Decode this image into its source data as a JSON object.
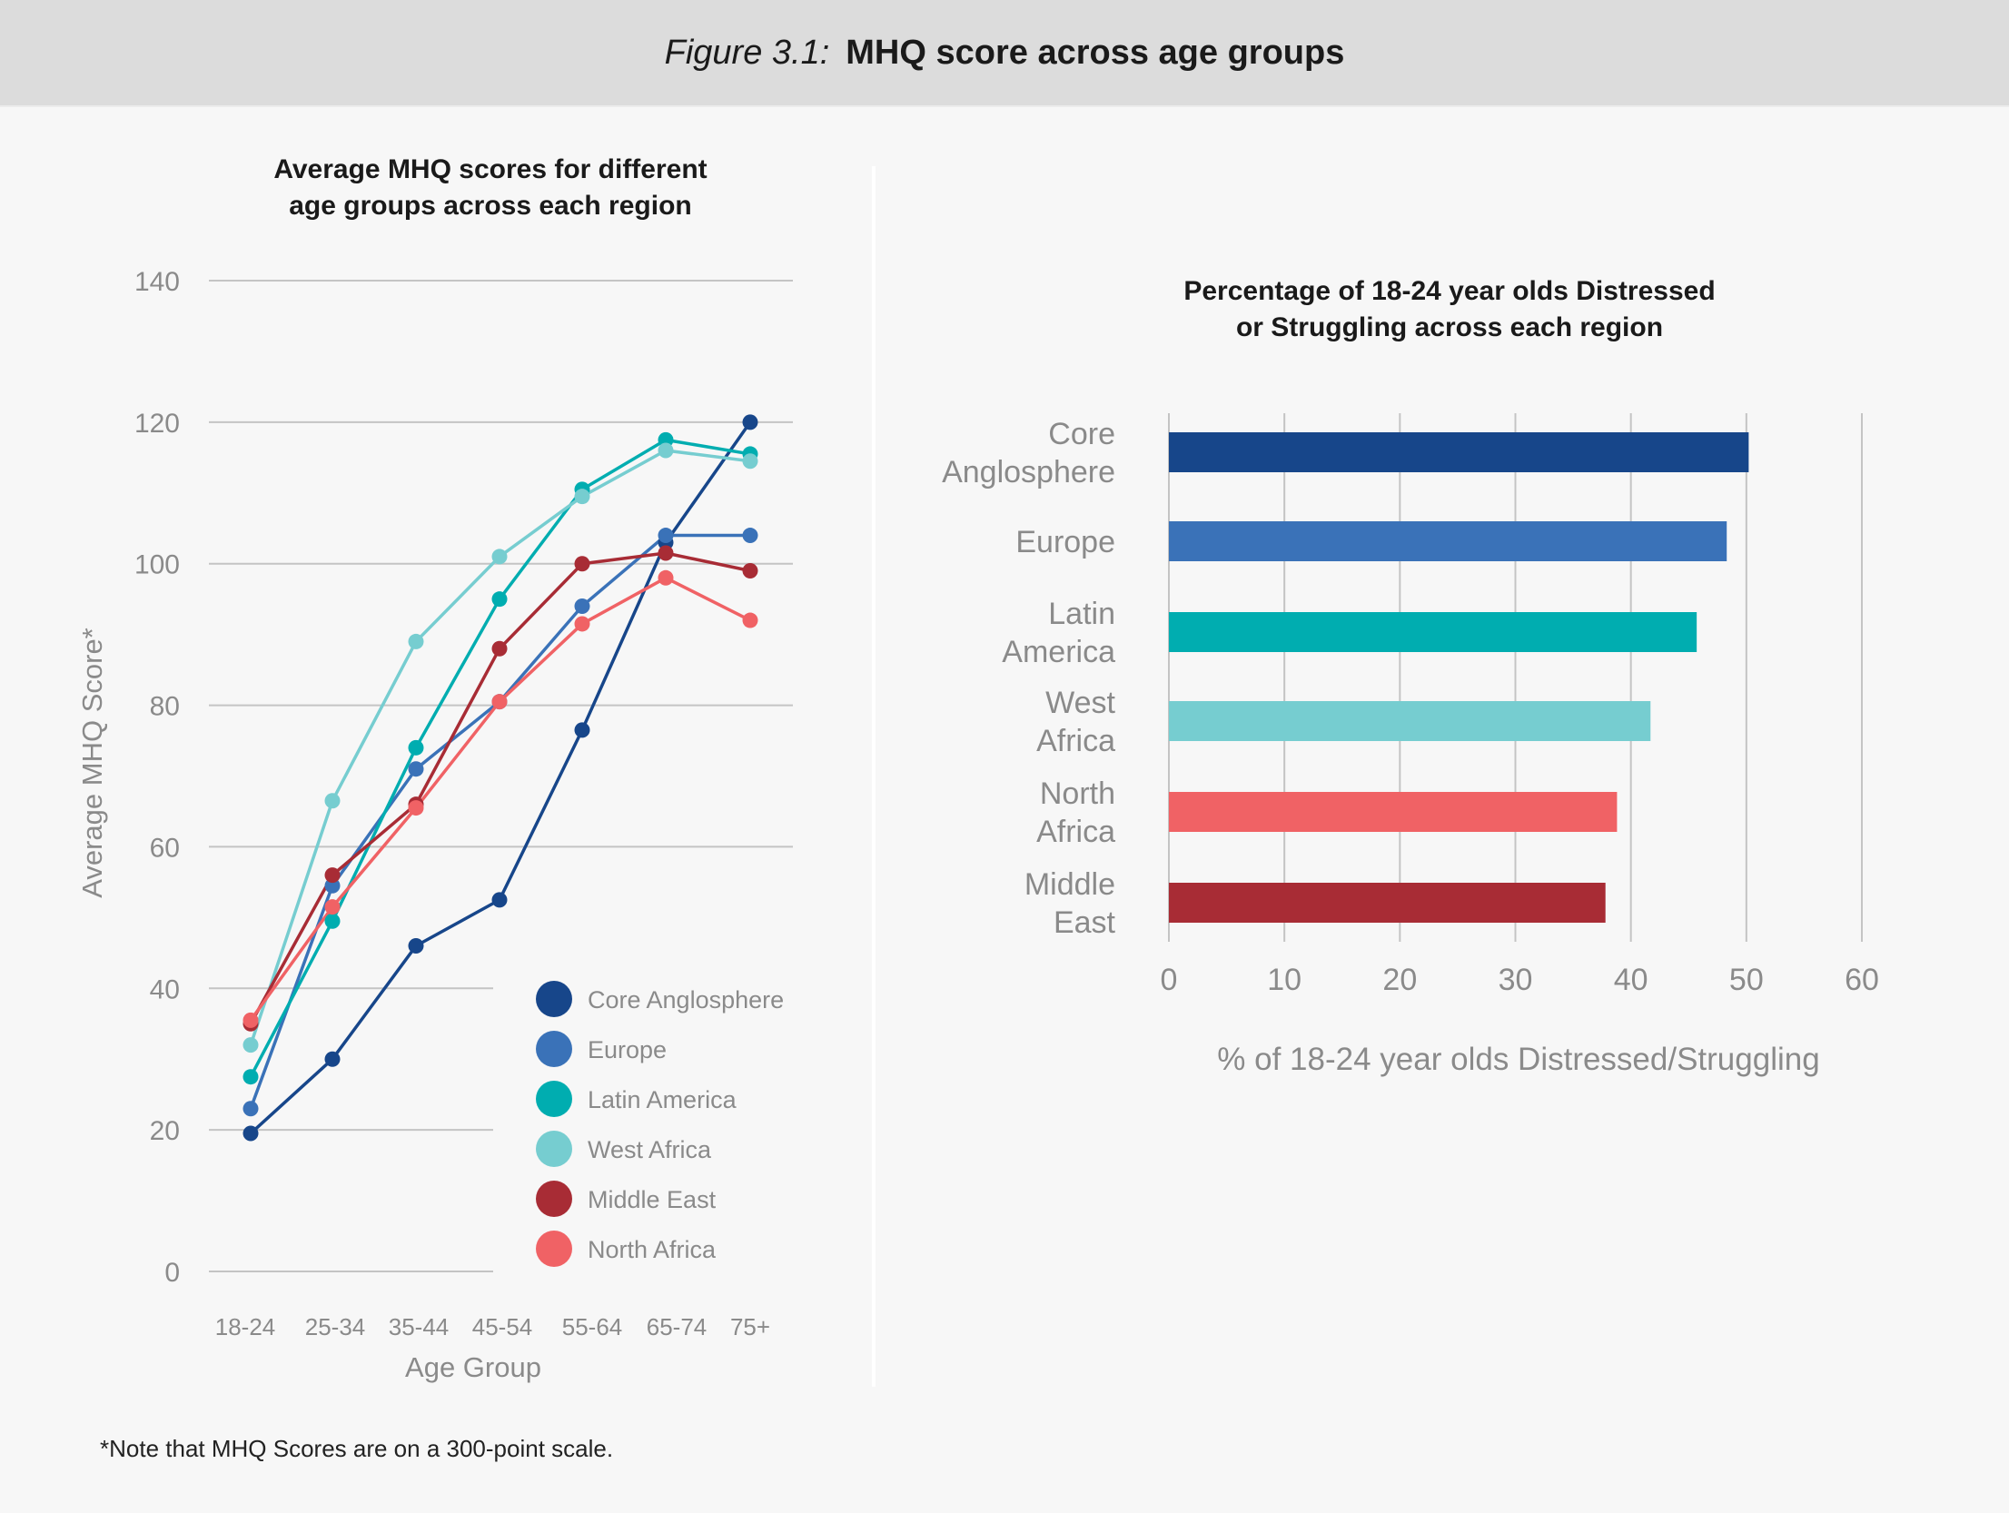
{
  "header": {
    "figure_label": "Figure 3.1:",
    "figure_title": "MHQ score across age groups"
  },
  "footnote": "*Note that MHQ Scores are on a 300-point scale.",
  "colors": {
    "core_anglosphere": "#17468a",
    "europe": "#3a72b8",
    "latin_america": "#00adb0",
    "west_africa": "#76cdd0",
    "middle_east": "#a82c35",
    "north_africa": "#f06265"
  },
  "chart_data": [
    {
      "type": "line",
      "title": [
        "Average MHQ scores for different",
        "age groups across each region"
      ],
      "xlabel": "Age Group",
      "ylabel": "Average MHQ Score*",
      "ylim": [
        0,
        140
      ],
      "yticks": [
        0,
        20,
        40,
        60,
        80,
        100,
        120,
        140
      ],
      "grid": true,
      "legend_position": "bottom-right",
      "categories": [
        "18-24",
        "25-34",
        "35-44",
        "45-54",
        "55-64",
        "65-74",
        "75+"
      ],
      "series": [
        {
          "name": "Core Anglosphere",
          "color": "#17468a",
          "values": [
            19.5,
            30,
            46,
            52.5,
            76.5,
            103,
            120
          ]
        },
        {
          "name": "Europe",
          "color": "#3a72b8",
          "values": [
            23,
            54.5,
            71,
            80.5,
            94,
            104,
            104
          ]
        },
        {
          "name": "Latin America",
          "color": "#00adb0",
          "values": [
            27.5,
            49.5,
            74,
            95,
            110.5,
            117.5,
            115.5
          ]
        },
        {
          "name": "West Africa",
          "color": "#76cdd0",
          "values": [
            32,
            66.5,
            89,
            101,
            109.5,
            116,
            114.5
          ]
        },
        {
          "name": "Middle East",
          "color": "#a82c35",
          "values": [
            35,
            56,
            66,
            88,
            100,
            101.5,
            99
          ]
        },
        {
          "name": "North Africa",
          "color": "#f06265",
          "values": [
            35.5,
            51.5,
            65.5,
            80.5,
            91.5,
            98,
            92
          ]
        }
      ]
    },
    {
      "type": "bar",
      "orientation": "horizontal",
      "title": [
        "Percentage of 18-24 year olds Distressed",
        "or Struggling across each region"
      ],
      "xlabel": "% of 18-24 year olds Distressed/Struggling",
      "xlim": [
        0,
        60
      ],
      "xticks": [
        0,
        10,
        20,
        30,
        40,
        50,
        60
      ],
      "grid": true,
      "categories": [
        [
          "Core",
          "Anglosphere"
        ],
        [
          "Europe"
        ],
        [
          "Latin",
          "America"
        ],
        [
          "West",
          "Africa"
        ],
        [
          "North",
          "Africa"
        ],
        [
          "Middle",
          "East"
        ]
      ],
      "values": [
        50.2,
        48.3,
        45.7,
        41.7,
        38.8,
        37.8
      ],
      "colors": [
        "#17468a",
        "#3a72b8",
        "#00adb0",
        "#76cdd0",
        "#f06265",
        "#a82c35"
      ]
    }
  ]
}
